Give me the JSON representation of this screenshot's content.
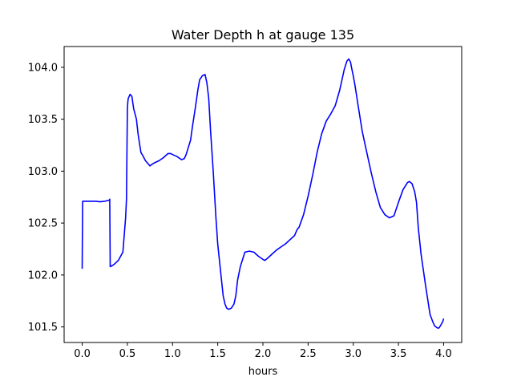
{
  "chart_data": {
    "type": "line",
    "title": "Water Depth h at gauge 135",
    "xlabel": "hours",
    "ylabel": "",
    "xlim": [
      -0.2,
      4.2
    ],
    "ylim": [
      101.35,
      104.2
    ],
    "xticks": [
      0.0,
      0.5,
      1.0,
      1.5,
      2.0,
      2.5,
      3.0,
      3.5,
      4.0
    ],
    "xtick_labels": [
      "0.0",
      "0.5",
      "1.0",
      "1.5",
      "2.0",
      "2.5",
      "3.0",
      "3.5",
      "4.0"
    ],
    "yticks": [
      101.5,
      102.0,
      102.5,
      103.0,
      103.5,
      104.0
    ],
    "ytick_labels": [
      "101.5",
      "102.0",
      "102.5",
      "103.0",
      "103.5",
      "104.0"
    ],
    "grid": false,
    "legend": "none",
    "series": [
      {
        "color": "#0000ff",
        "x": [
          0.0,
          0.005,
          0.05,
          0.1,
          0.15,
          0.2,
          0.25,
          0.3,
          0.305,
          0.31,
          0.35,
          0.4,
          0.45,
          0.48,
          0.49,
          0.5,
          0.505,
          0.51,
          0.52,
          0.53,
          0.55,
          0.57,
          0.6,
          0.62,
          0.65,
          0.67,
          0.7,
          0.75,
          0.78,
          0.8,
          0.85,
          0.9,
          0.95,
          0.98,
          1.0,
          1.05,
          1.1,
          1.13,
          1.15,
          1.2,
          1.22,
          1.25,
          1.28,
          1.3,
          1.33,
          1.36,
          1.38,
          1.4,
          1.42,
          1.45,
          1.48,
          1.5,
          1.53,
          1.56,
          1.58,
          1.6,
          1.62,
          1.65,
          1.68,
          1.7,
          1.72,
          1.75,
          1.8,
          1.85,
          1.9,
          1.95,
          2.0,
          2.02,
          2.05,
          2.1,
          2.15,
          2.2,
          2.25,
          2.3,
          2.35,
          2.38,
          2.4,
          2.45,
          2.5,
          2.55,
          2.6,
          2.65,
          2.7,
          2.75,
          2.8,
          2.85,
          2.9,
          2.93,
          2.95,
          2.97,
          2.98,
          3.0,
          3.02,
          3.05,
          3.1,
          3.15,
          3.2,
          3.25,
          3.3,
          3.35,
          3.4,
          3.45,
          3.5,
          3.55,
          3.6,
          3.62,
          3.65,
          3.68,
          3.7,
          3.72,
          3.75,
          3.8,
          3.85,
          3.88,
          3.9,
          3.93,
          3.95,
          3.97,
          3.99,
          4.0
        ],
        "y": [
          102.06,
          102.71,
          102.71,
          102.71,
          102.71,
          102.705,
          102.71,
          102.72,
          102.73,
          102.08,
          102.1,
          102.14,
          102.22,
          102.55,
          102.73,
          103.6,
          103.67,
          103.7,
          103.72,
          103.74,
          103.72,
          103.6,
          103.5,
          103.35,
          103.18,
          103.15,
          103.1,
          103.05,
          103.07,
          103.08,
          103.1,
          103.13,
          103.17,
          103.17,
          103.16,
          103.14,
          103.11,
          103.12,
          103.16,
          103.3,
          103.43,
          103.6,
          103.78,
          103.88,
          103.92,
          103.93,
          103.85,
          103.7,
          103.4,
          103.0,
          102.55,
          102.3,
          102.05,
          101.8,
          101.72,
          101.68,
          101.67,
          101.68,
          101.72,
          101.8,
          101.95,
          102.08,
          102.22,
          102.23,
          102.22,
          102.18,
          102.15,
          102.14,
          102.16,
          102.2,
          102.24,
          102.27,
          102.3,
          102.34,
          102.38,
          102.44,
          102.46,
          102.58,
          102.76,
          102.96,
          103.18,
          103.36,
          103.48,
          103.55,
          103.63,
          103.78,
          103.98,
          104.06,
          104.08,
          104.05,
          104.0,
          103.92,
          103.82,
          103.65,
          103.38,
          103.18,
          102.98,
          102.8,
          102.65,
          102.58,
          102.55,
          102.57,
          102.7,
          102.82,
          102.89,
          102.9,
          102.88,
          102.8,
          102.7,
          102.45,
          102.2,
          101.9,
          101.62,
          101.55,
          101.51,
          101.49,
          101.49,
          101.52,
          101.55,
          101.58
        ]
      }
    ]
  }
}
